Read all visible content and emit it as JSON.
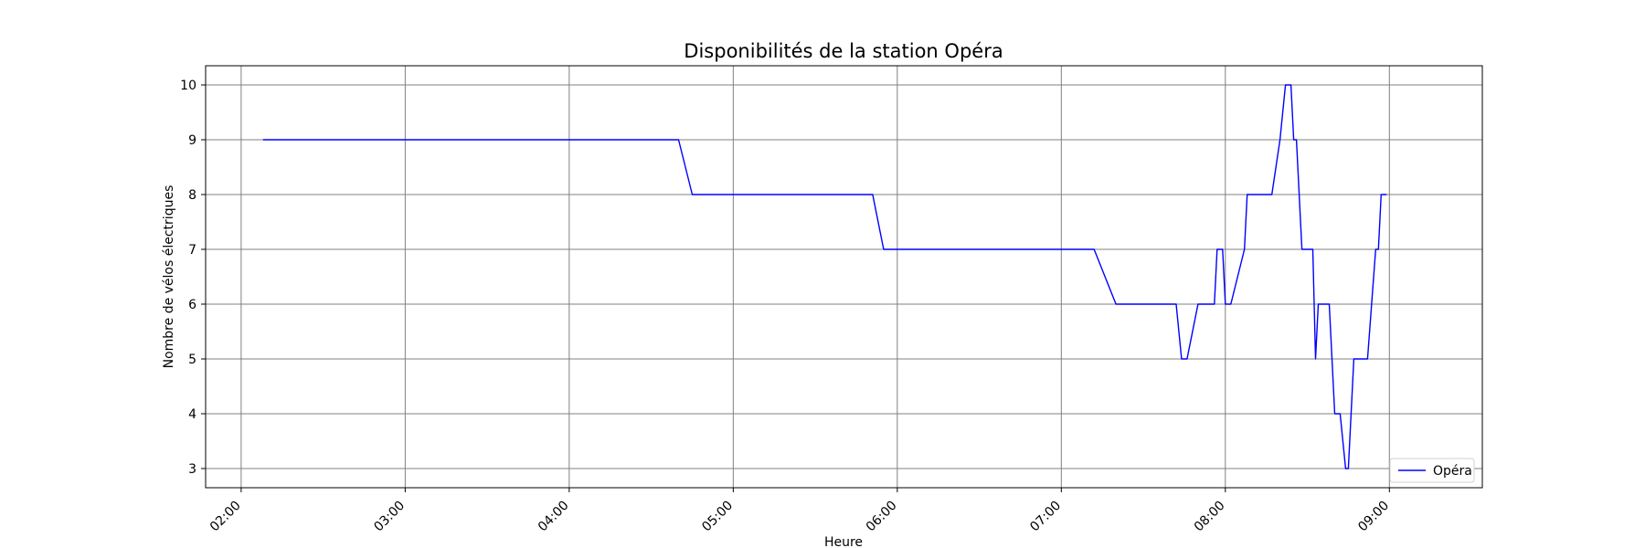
{
  "chart_data": {
    "type": "line",
    "title": "Disponibilités de la station Opéra",
    "xlabel": "Heure",
    "ylabel": "Nombre de vélos électriques",
    "x_ticks": [
      "02:00",
      "03:00",
      "04:00",
      "05:00",
      "06:00",
      "07:00",
      "08:00",
      "09:00"
    ],
    "y_ticks": [
      3,
      4,
      5,
      6,
      7,
      8,
      9,
      10
    ],
    "xlim": [
      "01:47",
      "09:34"
    ],
    "ylim": [
      2.65,
      10.35
    ],
    "grid": true,
    "legend_position": "lower-right",
    "series": [
      {
        "name": "Opéra",
        "color": "#0000ff",
        "points": [
          [
            "02:08",
            9
          ],
          [
            "04:40",
            9
          ],
          [
            "04:45",
            8
          ],
          [
            "05:51",
            8
          ],
          [
            "05:55",
            7
          ],
          [
            "07:12",
            7
          ],
          [
            "07:20",
            6
          ],
          [
            "07:42",
            6
          ],
          [
            "07:44",
            5
          ],
          [
            "07:46",
            5
          ],
          [
            "07:50",
            6
          ],
          [
            "07:56",
            6
          ],
          [
            "07:57",
            7
          ],
          [
            "07:59",
            7
          ],
          [
            "08:00",
            6
          ],
          [
            "08:02",
            6
          ],
          [
            "08:07",
            7
          ],
          [
            "08:08",
            8
          ],
          [
            "08:17",
            8
          ],
          [
            "08:20",
            9
          ],
          [
            "08:22",
            10
          ],
          [
            "08:24",
            10
          ],
          [
            "08:25",
            9
          ],
          [
            "08:26",
            9
          ],
          [
            "08:28",
            7
          ],
          [
            "08:32",
            7
          ],
          [
            "08:33",
            5
          ],
          [
            "08:34",
            6
          ],
          [
            "08:38",
            6
          ],
          [
            "08:40",
            4
          ],
          [
            "08:42",
            4
          ],
          [
            "08:44",
            3
          ],
          [
            "08:45",
            3
          ],
          [
            "08:47",
            5
          ],
          [
            "08:52",
            5
          ],
          [
            "08:55",
            7
          ],
          [
            "08:56",
            7
          ],
          [
            "08:57",
            8
          ],
          [
            "08:59",
            8
          ]
        ]
      }
    ]
  }
}
